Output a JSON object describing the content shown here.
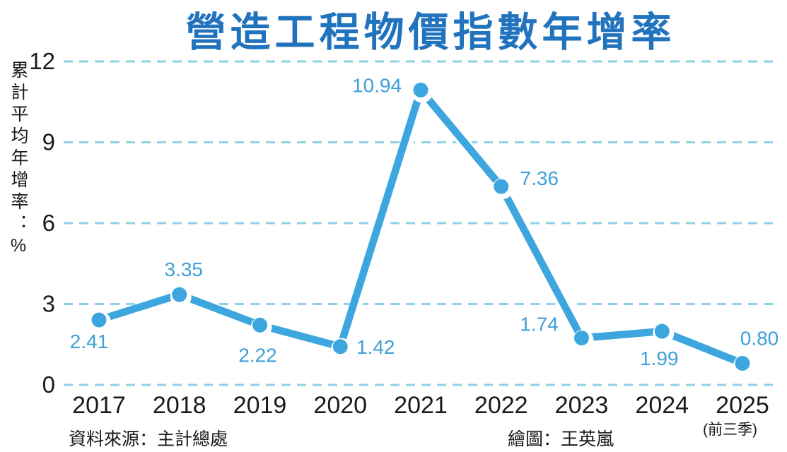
{
  "title": "營造工程物價指數年增率",
  "y_axis_title": "累計平均年增率：%",
  "source": "資料來源：主計總處",
  "credit": "繪圖：王英嵐",
  "footnote": "(前三季)",
  "colors": {
    "title": "#2173bd",
    "line": "#3ea6de",
    "grid": "#8ad2ea",
    "value_label": "#3f9fd8",
    "axis_text": "#1a1a1a",
    "background": "#ffffff"
  },
  "chart_data": {
    "type": "line",
    "title": "營造工程物價指數年增率",
    "ylabel": "累計平均年增率：%",
    "categories": [
      "2017",
      "2018",
      "2019",
      "2020",
      "2021",
      "2022",
      "2023",
      "2024",
      "2025"
    ],
    "values": [
      2.41,
      3.35,
      2.22,
      1.42,
      10.94,
      7.36,
      1.74,
      1.99,
      0.8
    ],
    "ylim": [
      0,
      12
    ],
    "yticks": [
      0,
      3,
      6,
      9,
      12
    ],
    "grid": true,
    "grid_style": "dashed",
    "legend": false,
    "x_footnote_last_category": "(前三季)"
  }
}
